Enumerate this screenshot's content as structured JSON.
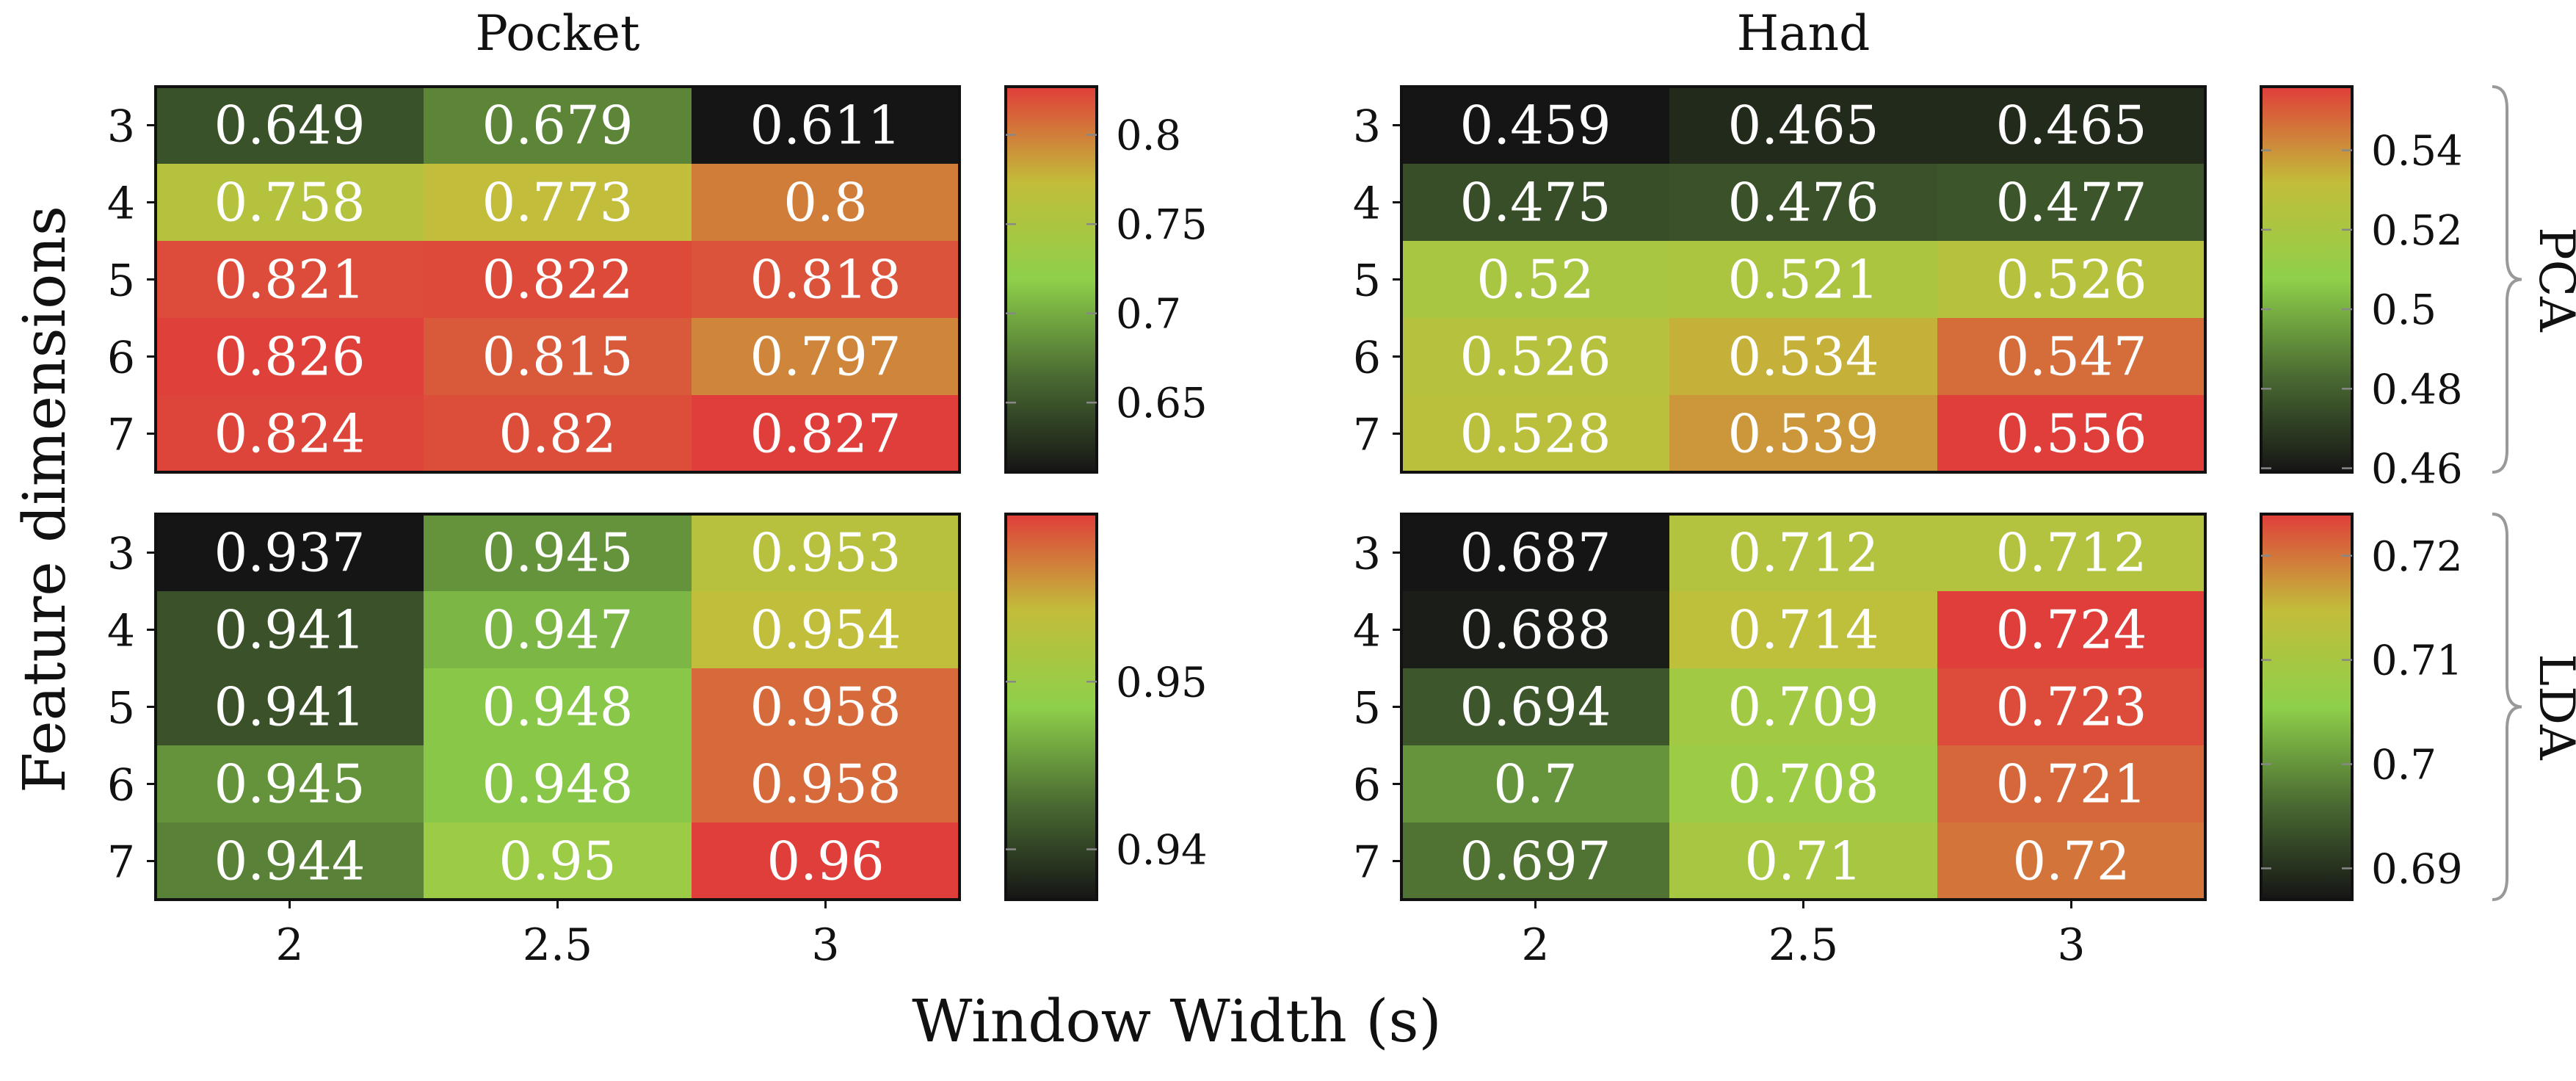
{
  "figure": {
    "xlabel": "Window Width (s)",
    "ylabel": "Feature dimensions"
  },
  "colorscale": {
    "stops": [
      "#151515",
      "#4a6b32",
      "#8ed04a",
      "#c2bd3a",
      "#e03e3a"
    ]
  },
  "chart_data": [
    {
      "type": "heatmap",
      "panel": "Pocket PCA",
      "title": "Pocket",
      "row_group": "",
      "categories": [
        "2",
        "2.5",
        "3"
      ],
      "rows": [
        "3",
        "4",
        "5",
        "6",
        "7"
      ],
      "values": [
        [
          0.649,
          0.679,
          0.611
        ],
        [
          0.758,
          0.773,
          0.8
        ],
        [
          0.821,
          0.822,
          0.818
        ],
        [
          0.826,
          0.815,
          0.797
        ],
        [
          0.824,
          0.82,
          0.827
        ]
      ],
      "cell_labels": [
        [
          "0.649",
          "0.679",
          "0.611"
        ],
        [
          "0.758",
          "0.773",
          "0.8"
        ],
        [
          "0.821",
          "0.822",
          "0.818"
        ],
        [
          "0.826",
          "0.815",
          "0.797"
        ],
        [
          "0.824",
          "0.82",
          "0.827"
        ]
      ],
      "colorbar": {
        "range": [
          0.611,
          0.827
        ],
        "ticks": [
          0.65,
          0.7,
          0.75,
          0.8
        ],
        "tick_labels": [
          "0.65",
          "0.7",
          "0.75",
          "0.8"
        ]
      }
    },
    {
      "type": "heatmap",
      "panel": "Hand PCA",
      "title": "Hand",
      "row_group": "PCA",
      "categories": [
        "2",
        "2.5",
        "3"
      ],
      "rows": [
        "3",
        "4",
        "5",
        "6",
        "7"
      ],
      "values": [
        [
          0.459,
          0.465,
          0.465
        ],
        [
          0.475,
          0.476,
          0.477
        ],
        [
          0.52,
          0.521,
          0.526
        ],
        [
          0.526,
          0.534,
          0.547
        ],
        [
          0.528,
          0.539,
          0.556
        ]
      ],
      "cell_labels": [
        [
          "0.459",
          "0.465",
          "0.465"
        ],
        [
          "0.475",
          "0.476",
          "0.477"
        ],
        [
          "0.52",
          "0.521",
          "0.526"
        ],
        [
          "0.526",
          "0.534",
          "0.547"
        ],
        [
          "0.528",
          "0.539",
          "0.556"
        ]
      ],
      "colorbar": {
        "range": [
          0.459,
          0.556
        ],
        "ticks": [
          0.46,
          0.48,
          0.5,
          0.52,
          0.54
        ],
        "tick_labels": [
          "0.46",
          "0.48",
          "0.5",
          "0.52",
          "0.54"
        ]
      }
    },
    {
      "type": "heatmap",
      "panel": "Pocket LDA",
      "title": "",
      "row_group": "",
      "categories": [
        "2",
        "2.5",
        "3"
      ],
      "rows": [
        "3",
        "4",
        "5",
        "6",
        "7"
      ],
      "values": [
        [
          0.937,
          0.945,
          0.953
        ],
        [
          0.941,
          0.947,
          0.954
        ],
        [
          0.941,
          0.948,
          0.958
        ],
        [
          0.945,
          0.948,
          0.958
        ],
        [
          0.944,
          0.95,
          0.96
        ]
      ],
      "cell_labels": [
        [
          "0.937",
          "0.945",
          "0.953"
        ],
        [
          "0.941",
          "0.947",
          "0.954"
        ],
        [
          "0.941",
          "0.948",
          "0.958"
        ],
        [
          "0.945",
          "0.948",
          "0.958"
        ],
        [
          "0.944",
          "0.95",
          "0.96"
        ]
      ],
      "colorbar": {
        "range": [
          0.937,
          0.96
        ],
        "ticks": [
          0.94,
          0.95
        ],
        "tick_labels": [
          "0.94",
          "0.95"
        ]
      }
    },
    {
      "type": "heatmap",
      "panel": "Hand LDA",
      "title": "",
      "row_group": "LDA",
      "categories": [
        "2",
        "2.5",
        "3"
      ],
      "rows": [
        "3",
        "4",
        "5",
        "6",
        "7"
      ],
      "values": [
        [
          0.687,
          0.712,
          0.712
        ],
        [
          0.688,
          0.714,
          0.724
        ],
        [
          0.694,
          0.709,
          0.723
        ],
        [
          0.7,
          0.708,
          0.721
        ],
        [
          0.697,
          0.71,
          0.72
        ]
      ],
      "cell_labels": [
        [
          "0.687",
          "0.712",
          "0.712"
        ],
        [
          "0.688",
          "0.714",
          "0.724"
        ],
        [
          "0.694",
          "0.709",
          "0.723"
        ],
        [
          "0.7",
          "0.708",
          "0.721"
        ],
        [
          "0.697",
          "0.71",
          "0.72"
        ]
      ],
      "colorbar": {
        "range": [
          0.687,
          0.724
        ],
        "ticks": [
          0.69,
          0.7,
          0.71,
          0.72
        ],
        "tick_labels": [
          "0.69",
          "0.7",
          "0.71",
          "0.72"
        ]
      }
    }
  ]
}
